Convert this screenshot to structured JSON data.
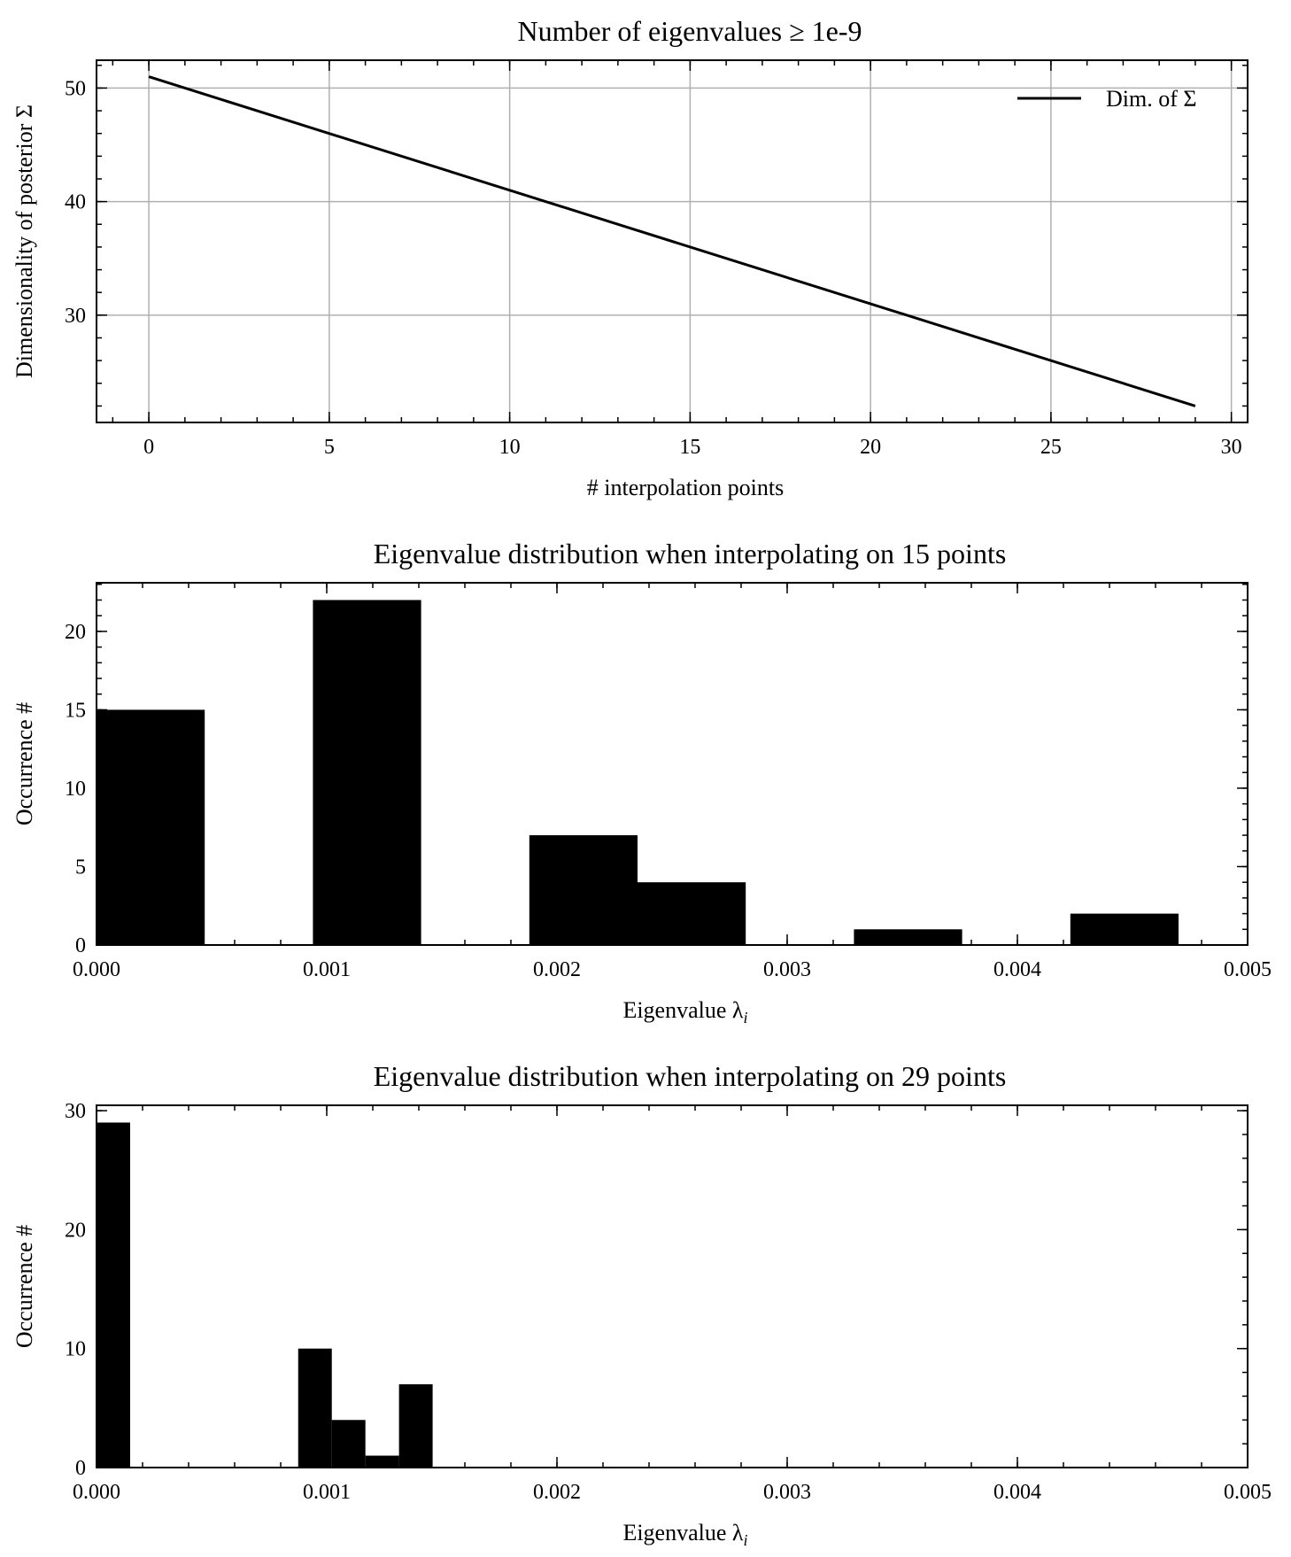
{
  "chart_data": [
    {
      "type": "line",
      "title": "Number of eigenvalues ≥ 1e-9",
      "xlabel": "# interpolation points",
      "ylabel": "Dimensionality of posterior Σ",
      "xlim": [
        -1.45,
        30.45
      ],
      "ylim": [
        20.55,
        52.45
      ],
      "xticks": [
        0,
        5,
        10,
        15,
        20,
        25,
        30
      ],
      "yticks": [
        30,
        40,
        50
      ],
      "xtick_labels": [
        "0",
        "5",
        "10",
        "15",
        "20",
        "25",
        "30"
      ],
      "ytick_labels": [
        "30",
        "40",
        "50"
      ],
      "grid": true,
      "legend": "top-right",
      "series": [
        {
          "name": "Dim. of Σ",
          "color": "#000000",
          "x": [
            0,
            29
          ],
          "y": [
            51,
            22
          ]
        }
      ]
    },
    {
      "type": "bar",
      "title": "Eigenvalue distribution when interpolating on 15 points",
      "xlabel": "Eigenvalue λ",
      "xlabel_sub": "i",
      "ylabel": "Occurrence #",
      "xlim": [
        0,
        0.005
      ],
      "ylim": [
        0,
        23.1
      ],
      "xticks": [
        0,
        0.001,
        0.002,
        0.003,
        0.004,
        0.005
      ],
      "yticks": [
        0,
        5,
        10,
        15,
        20
      ],
      "xtick_labels": [
        "0.000",
        "0.001",
        "0.002",
        "0.003",
        "0.004",
        "0.005"
      ],
      "ytick_labels": [
        "0",
        "5",
        "10",
        "15",
        "20"
      ],
      "grid": false,
      "bins": [
        {
          "x0": 0.0,
          "x1": 0.00047,
          "count": 15
        },
        {
          "x0": 0.00047,
          "x1": 0.00094,
          "count": 0
        },
        {
          "x0": 0.00094,
          "x1": 0.00141,
          "count": 22
        },
        {
          "x0": 0.00141,
          "x1": 0.00188,
          "count": 0
        },
        {
          "x0": 0.00188,
          "x1": 0.00235,
          "count": 7
        },
        {
          "x0": 0.00235,
          "x1": 0.00282,
          "count": 4
        },
        {
          "x0": 0.00282,
          "x1": 0.00329,
          "count": 0
        },
        {
          "x0": 0.00329,
          "x1": 0.00376,
          "count": 1
        },
        {
          "x0": 0.00376,
          "x1": 0.00423,
          "count": 0
        },
        {
          "x0": 0.00423,
          "x1": 0.0047,
          "count": 2
        }
      ]
    },
    {
      "type": "bar",
      "title": "Eigenvalue distribution when interpolating on 29 points",
      "xlabel": "Eigenvalue λ",
      "xlabel_sub": "i",
      "ylabel": "Occurrence #",
      "xlim": [
        0,
        0.005
      ],
      "ylim": [
        0,
        30.45
      ],
      "xticks": [
        0,
        0.001,
        0.002,
        0.003,
        0.004,
        0.005
      ],
      "yticks": [
        0,
        10,
        20,
        30
      ],
      "xtick_labels": [
        "0.000",
        "0.001",
        "0.002",
        "0.003",
        "0.004",
        "0.005"
      ],
      "ytick_labels": [
        "0",
        "10",
        "20",
        "30"
      ],
      "grid": false,
      "bins": [
        {
          "x0": 0.0,
          "x1": 0.000146,
          "count": 29
        },
        {
          "x0": 0.000146,
          "x1": 0.000292,
          "count": 0
        },
        {
          "x0": 0.000292,
          "x1": 0.000438,
          "count": 0
        },
        {
          "x0": 0.000438,
          "x1": 0.000584,
          "count": 0
        },
        {
          "x0": 0.000584,
          "x1": 0.00073,
          "count": 0
        },
        {
          "x0": 0.00073,
          "x1": 0.000876,
          "count": 0
        },
        {
          "x0": 0.000876,
          "x1": 0.001022,
          "count": 10
        },
        {
          "x0": 0.001022,
          "x1": 0.001168,
          "count": 4
        },
        {
          "x0": 0.001168,
          "x1": 0.001314,
          "count": 1
        },
        {
          "x0": 0.001314,
          "x1": 0.00146,
          "count": 7
        }
      ]
    }
  ]
}
